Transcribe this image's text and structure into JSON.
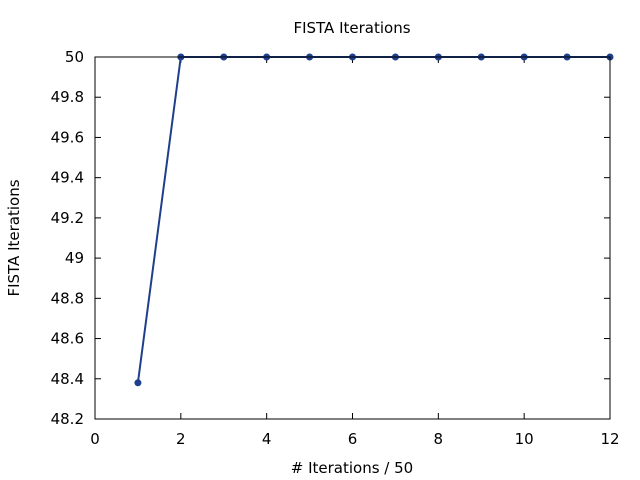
{
  "chart_data": {
    "type": "line",
    "title": "FISTA Iterations",
    "xlabel": "# Iterations / 50",
    "ylabel": "FISTA Iterations",
    "xlim": [
      0,
      12
    ],
    "ylim": [
      48.2,
      50
    ],
    "xticks": [
      0,
      2,
      4,
      6,
      8,
      10,
      12
    ],
    "yticks": [
      48.2,
      48.4,
      48.6,
      48.8,
      49,
      49.2,
      49.4,
      49.6,
      49.8,
      50
    ],
    "ytick_labels": [
      "48.2",
      "48.4",
      "48.6",
      "48.8",
      "49",
      "49.2",
      "49.4",
      "49.6",
      "49.8",
      "50"
    ],
    "grid": false,
    "series": [
      {
        "color": "#1f3f8c",
        "x": [
          1,
          2,
          3,
          4,
          5,
          6,
          7,
          8,
          9,
          10,
          11,
          12
        ],
        "y": [
          48.38,
          50,
          50,
          50,
          50,
          50,
          50,
          50,
          50,
          50,
          50,
          50
        ]
      }
    ]
  }
}
